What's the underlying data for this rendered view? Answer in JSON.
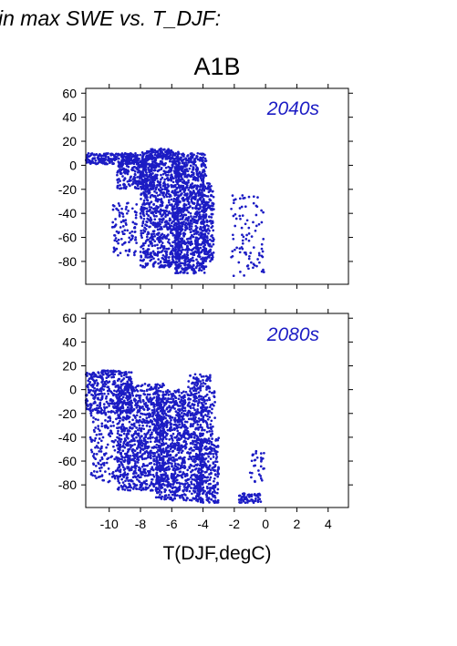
{
  "header_text": "in max SWE vs. T_DJF:",
  "colors": {
    "points": "#1c1cc4",
    "period_label": "#1c1cc4",
    "axes": "#000000"
  },
  "chart_data": [
    {
      "type": "scatter",
      "title": "A1B",
      "annotation": "2040s",
      "xlabel": "",
      "ylabel": "",
      "xlim": [
        -11.5,
        5.3
      ],
      "ylim": [
        -99,
        64
      ],
      "x_ticks": [
        -10,
        -8,
        -6,
        -4,
        -2,
        0,
        2,
        4
      ],
      "y_ticks": [
        -80,
        -60,
        -40,
        -20,
        0,
        20,
        40,
        60
      ],
      "x_tick_labels_shown": false,
      "grid": false,
      "clusters": [
        {
          "x_range": [
            -11.5,
            -7.5
          ],
          "y_range": [
            1,
            10
          ],
          "count": 260
        },
        {
          "x_range": [
            -9.5,
            -7.0
          ],
          "y_range": [
            -20,
            5
          ],
          "count": 240
        },
        {
          "x_range": [
            -9.8,
            -8.2
          ],
          "y_range": [
            -75,
            -30
          ],
          "count": 100
        },
        {
          "x_range": [
            -8.0,
            -5.5
          ],
          "y_range": [
            -85,
            12
          ],
          "count": 900
        },
        {
          "x_range": [
            -5.8,
            -3.8
          ],
          "y_range": [
            -90,
            10
          ],
          "count": 950
        },
        {
          "x_range": [
            -4.0,
            -3.3
          ],
          "y_range": [
            -80,
            -15
          ],
          "count": 160
        },
        {
          "x_range": [
            -7.5,
            -6.0
          ],
          "y_range": [
            5,
            14
          ],
          "count": 60
        },
        {
          "x_range": [
            -2.2,
            -0.1
          ],
          "y_range": [
            -92,
            -25
          ],
          "count": 90
        }
      ]
    },
    {
      "type": "scatter",
      "annotation": "2080s",
      "xlabel": "T(DJF,degC)",
      "ylabel": "",
      "xlim": [
        -11.5,
        5.3
      ],
      "ylim": [
        -99,
        64
      ],
      "x_ticks": [
        -10,
        -8,
        -6,
        -4,
        -2,
        0,
        2,
        4
      ],
      "x_tick_labels": [
        "-10",
        "-8",
        "-6",
        "-4",
        "-2",
        "0",
        "2",
        "4"
      ],
      "y_ticks": [
        -80,
        -60,
        -40,
        -20,
        0,
        20,
        40,
        60
      ],
      "grid": false,
      "clusters": [
        {
          "x_range": [
            -11.5,
            -8.5
          ],
          "y_range": [
            -20,
            15
          ],
          "count": 350
        },
        {
          "x_range": [
            -10.5,
            -9.3
          ],
          "y_range": [
            15,
            16
          ],
          "count": 25
        },
        {
          "x_range": [
            -11.2,
            -9.2
          ],
          "y_range": [
            -78,
            -15
          ],
          "count": 160
        },
        {
          "x_range": [
            -9.5,
            -6.5
          ],
          "y_range": [
            -85,
            5
          ],
          "count": 900
        },
        {
          "x_range": [
            -7.0,
            -4.0
          ],
          "y_range": [
            -93,
            0
          ],
          "count": 1000
        },
        {
          "x_range": [
            -4.5,
            -3.0
          ],
          "y_range": [
            -95,
            -40
          ],
          "count": 300
        },
        {
          "x_range": [
            -5.0,
            -3.5
          ],
          "y_range": [
            0,
            13
          ],
          "count": 60
        },
        {
          "x_range": [
            -4.0,
            -3.2
          ],
          "y_range": [
            -40,
            0
          ],
          "count": 70
        },
        {
          "x_range": [
            -1.7,
            -0.3
          ],
          "y_range": [
            -95,
            -87
          ],
          "count": 60
        },
        {
          "x_range": [
            -1.0,
            0.0
          ],
          "y_range": [
            -78,
            -50
          ],
          "count": 30
        }
      ]
    }
  ]
}
